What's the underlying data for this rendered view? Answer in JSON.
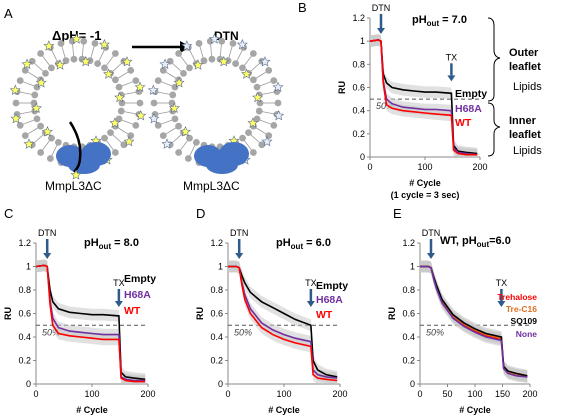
{
  "panel_letters": [
    "A",
    "B",
    "C",
    "D",
    "E"
  ],
  "schematic": {
    "before_label": "ΔpH= -1",
    "after_label": "DTN",
    "protein_label_left": "MmpL3ΔC",
    "protein_label_right": "MmpL3ΔC",
    "membrane_color": "#a6a6a6",
    "protein_color": "#4472c4",
    "star_filled_color": "#ffff66",
    "star_empty_color": "#e8eef8"
  },
  "common": {
    "y_axis_label": "RU",
    "x_axis_label": "# Cycle",
    "x_axis_sublabel": "(1 cycle = 3 sec)",
    "dtn_marker": "DTN",
    "tx_marker": "TX",
    "fifty_percent": "50%",
    "arrow_color": "#2e5b8a"
  },
  "panel_b_annotations": {
    "outer_leaflet": "Outer\nleaflet",
    "outer_lipids": "Lipids",
    "inner_leaflet": "Inner\nleaflet",
    "inner_lipids": "Lipids"
  },
  "chart_data": [
    {
      "panel": "B",
      "type": "line",
      "title": "pHout = 7.0",
      "title_main": "pH",
      "title_sub": "out",
      "title_rest": " = 7.0",
      "xlabel": "# Cycle",
      "ylabel": "RU",
      "xlim": [
        0,
        200
      ],
      "ylim": [
        0,
        1.2
      ],
      "xticks": [
        0,
        100,
        200
      ],
      "yticks": [
        0,
        0.2,
        0.4,
        0.6,
        0.8,
        1,
        1.2
      ],
      "ytick_labels": [
        "0",
        "0.2",
        "0.4",
        "0.6",
        "0.8",
        "1",
        "1.2"
      ],
      "reference_line": 0.5,
      "series": [
        {
          "name": "Empty",
          "color": "#000000",
          "x": [
            0,
            15,
            20,
            24,
            30,
            40,
            60,
            80,
            100,
            120,
            148,
            152,
            160,
            175,
            195
          ],
          "y": [
            1.0,
            1.01,
            1.0,
            0.72,
            0.64,
            0.6,
            0.58,
            0.57,
            0.56,
            0.56,
            0.55,
            0.1,
            0.05,
            0.04,
            0.03
          ]
        },
        {
          "name": "H68A",
          "color": "#7030a0",
          "x": [
            0,
            15,
            20,
            24,
            30,
            40,
            60,
            80,
            100,
            120,
            148,
            152,
            160,
            175,
            195
          ],
          "y": [
            1.0,
            1.01,
            1.0,
            0.66,
            0.5,
            0.46,
            0.43,
            0.42,
            0.41,
            0.41,
            0.4,
            0.08,
            0.04,
            0.03,
            0.02
          ]
        },
        {
          "name": "WT",
          "color": "#ff0000",
          "x": [
            0,
            15,
            20,
            24,
            30,
            40,
            60,
            80,
            100,
            120,
            148,
            152,
            160,
            175,
            195
          ],
          "y": [
            1.0,
            1.01,
            1.0,
            0.64,
            0.45,
            0.42,
            0.4,
            0.39,
            0.38,
            0.37,
            0.36,
            0.06,
            0.03,
            0.02,
            0.02
          ]
        }
      ]
    },
    {
      "panel": "C",
      "type": "line",
      "title": "pHout = 8.0",
      "title_main": "pH",
      "title_sub": "out",
      "title_rest": " = 8.0",
      "xlabel": "# Cycle",
      "ylabel": "RU",
      "xlim": [
        0,
        200
      ],
      "ylim": [
        0,
        1.2
      ],
      "xticks": [
        0,
        100,
        200
      ],
      "yticks": [
        0,
        0.2,
        0.4,
        0.6,
        0.8,
        1,
        1.2
      ],
      "ytick_labels": [
        "0",
        "0.2",
        "0.4",
        "0.6",
        "0.8",
        "1",
        "1.2"
      ],
      "reference_line": 0.5,
      "series": [
        {
          "name": "Empty",
          "color": "#000000",
          "x": [
            0,
            15,
            20,
            25,
            30,
            40,
            60,
            80,
            100,
            120,
            148,
            152,
            160,
            175,
            195
          ],
          "y": [
            1.0,
            1.01,
            1.0,
            0.8,
            0.7,
            0.64,
            0.61,
            0.6,
            0.59,
            0.59,
            0.58,
            0.1,
            0.06,
            0.05,
            0.04
          ]
        },
        {
          "name": "H68A",
          "color": "#7030a0",
          "x": [
            0,
            15,
            20,
            25,
            30,
            40,
            60,
            80,
            100,
            120,
            148,
            152,
            160,
            175,
            195
          ],
          "y": [
            1.0,
            1.01,
            1.0,
            0.72,
            0.56,
            0.48,
            0.45,
            0.44,
            0.43,
            0.42,
            0.42,
            0.06,
            0.04,
            0.03,
            0.03
          ]
        },
        {
          "name": "WT",
          "color": "#ff0000",
          "x": [
            0,
            15,
            20,
            25,
            30,
            40,
            60,
            80,
            100,
            120,
            148,
            152,
            160,
            175,
            195
          ],
          "y": [
            1.0,
            1.01,
            1.0,
            0.68,
            0.5,
            0.43,
            0.41,
            0.4,
            0.39,
            0.38,
            0.38,
            0.05,
            0.03,
            0.02,
            0.02
          ]
        }
      ]
    },
    {
      "panel": "D",
      "type": "line",
      "title": "pHout = 6.0",
      "title_main": "pH",
      "title_sub": "out",
      "title_rest": " = 6.0",
      "xlabel": "# Cycle",
      "ylabel": "RU",
      "xlim": [
        0,
        200
      ],
      "ylim": [
        0,
        1.2
      ],
      "xticks": [
        0,
        100,
        200
      ],
      "yticks": [
        0,
        0.2,
        0.4,
        0.6,
        0.8,
        1,
        1.2
      ],
      "ytick_labels": [
        "0",
        "0.2",
        "0.4",
        "0.6",
        "0.8",
        "1",
        "1.2"
      ],
      "reference_line": 0.5,
      "series": [
        {
          "name": "Empty",
          "color": "#000000",
          "x": [
            0,
            15,
            20,
            25,
            30,
            40,
            60,
            80,
            100,
            120,
            148,
            152,
            160,
            175,
            195
          ],
          "y": [
            1.0,
            1.0,
            0.99,
            0.92,
            0.86,
            0.78,
            0.7,
            0.65,
            0.6,
            0.55,
            0.5,
            0.2,
            0.12,
            0.08,
            0.06
          ]
        },
        {
          "name": "H68A",
          "color": "#7030a0",
          "x": [
            0,
            15,
            20,
            25,
            30,
            40,
            60,
            80,
            100,
            120,
            148,
            152,
            160,
            175,
            195
          ],
          "y": [
            1.0,
            1.0,
            0.99,
            0.86,
            0.76,
            0.64,
            0.52,
            0.46,
            0.42,
            0.39,
            0.36,
            0.12,
            0.08,
            0.06,
            0.05
          ]
        },
        {
          "name": "WT",
          "color": "#ff0000",
          "x": [
            0,
            15,
            20,
            25,
            30,
            40,
            60,
            80,
            100,
            120,
            148,
            152,
            160,
            175,
            195
          ],
          "y": [
            1.0,
            1.0,
            0.99,
            0.84,
            0.72,
            0.6,
            0.48,
            0.42,
            0.38,
            0.35,
            0.32,
            0.08,
            0.05,
            0.04,
            0.03
          ]
        }
      ]
    },
    {
      "panel": "E",
      "type": "line",
      "title": "WT, pHout=6.0",
      "title_main": "WT, pH",
      "title_sub": "out",
      "title_rest": "=6.0",
      "xlabel": "# Cycle",
      "ylabel": "RU",
      "xlim": [
        0,
        200
      ],
      "ylim": [
        0,
        1.2
      ],
      "xticks": [
        0,
        50,
        100,
        150,
        200
      ],
      "yticks": [
        0,
        0.2,
        0.4,
        0.6,
        0.8,
        1,
        1.2
      ],
      "ytick_labels": [
        "0",
        "0.2",
        "0.4",
        "0.6",
        "0.8",
        "1",
        "1.2"
      ],
      "reference_line": 0.5,
      "series": [
        {
          "name": "Trehalose",
          "color": "#ff0000",
          "x": [
            0,
            15,
            20,
            25,
            30,
            40,
            60,
            80,
            100,
            120,
            148,
            152,
            160,
            175,
            195
          ],
          "y": [
            1.0,
            1.0,
            0.99,
            0.9,
            0.82,
            0.7,
            0.57,
            0.5,
            0.45,
            0.41,
            0.38,
            0.14,
            0.1,
            0.08,
            0.06
          ]
        },
        {
          "name": "Tre-C16",
          "color": "#e07020",
          "x": [
            0,
            15,
            20,
            25,
            30,
            40,
            60,
            80,
            100,
            120,
            148,
            152,
            160,
            175,
            195
          ],
          "y": [
            1.0,
            1.0,
            0.99,
            0.9,
            0.83,
            0.71,
            0.58,
            0.51,
            0.46,
            0.42,
            0.39,
            0.15,
            0.1,
            0.08,
            0.07
          ]
        },
        {
          "name": "SQ109",
          "color": "#000000",
          "x": [
            0,
            15,
            20,
            25,
            30,
            40,
            60,
            80,
            100,
            120,
            148,
            152,
            160,
            175,
            195
          ],
          "y": [
            1.0,
            1.0,
            0.99,
            0.91,
            0.84,
            0.72,
            0.59,
            0.52,
            0.47,
            0.43,
            0.4,
            0.15,
            0.11,
            0.09,
            0.07
          ]
        },
        {
          "name": "None",
          "color": "#7030a0",
          "x": [
            0,
            15,
            20,
            25,
            30,
            40,
            60,
            80,
            100,
            120,
            148,
            152,
            160,
            175,
            195
          ],
          "y": [
            1.0,
            1.0,
            0.99,
            0.89,
            0.81,
            0.69,
            0.56,
            0.49,
            0.44,
            0.4,
            0.37,
            0.13,
            0.09,
            0.07,
            0.06
          ]
        }
      ]
    }
  ]
}
